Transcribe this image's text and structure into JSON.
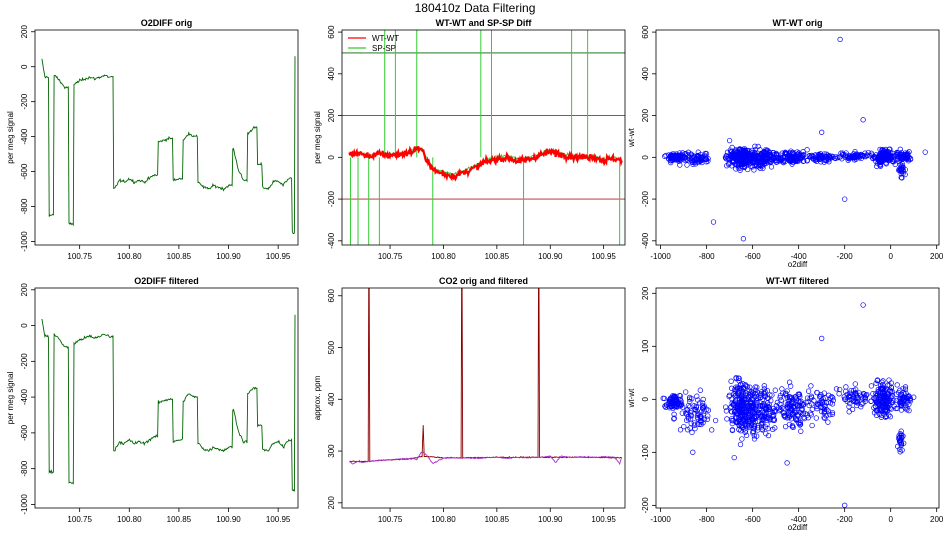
{
  "figure_title": "180410z   Data Filtering",
  "chart_data": [
    {
      "id": "p1",
      "type": "line",
      "title": "O2DIFF orig",
      "xlabel": "",
      "ylabel": "per meg signal",
      "xlim": [
        100.705,
        100.97
      ],
      "ylim": [
        -1020,
        210
      ],
      "xticks": [
        100.75,
        100.8,
        100.85,
        100.9,
        100.95
      ],
      "xtick_labels": [
        "100.75",
        "100.80",
        "100.85",
        "100.90",
        "100.95"
      ],
      "yticks": [
        -1000,
        -800,
        -600,
        -400,
        -200,
        0,
        200
      ],
      "ytick_labels": [
        "-1000",
        "-800",
        "-600",
        "-400",
        "-200",
        "0",
        "200"
      ],
      "series": [
        {
          "color": "#006400",
          "x": [
            100.712,
            100.715,
            100.72,
            100.725,
            100.73,
            100.735,
            100.74,
            100.745,
            100.75,
            100.755,
            100.76,
            100.765,
            100.77,
            100.775,
            100.78,
            100.785,
            100.79,
            100.795,
            100.8,
            100.805,
            100.81,
            100.815,
            100.82,
            100.825,
            100.83,
            100.835,
            100.84,
            100.845,
            100.85,
            100.855,
            100.86,
            100.865,
            100.87,
            100.875,
            100.88,
            100.885,
            100.89,
            100.895,
            100.9,
            100.905,
            100.91,
            100.915,
            100.92,
            100.925,
            100.93,
            100.935,
            100.94,
            100.945,
            100.95,
            100.955,
            100.96,
            100.965,
            100.967
          ],
          "y": [
            40,
            -60,
            -850,
            -50,
            -80,
            -120,
            -900,
            -100,
            -80,
            -70,
            -60,
            -70,
            -60,
            -50,
            -60,
            -700,
            -650,
            -660,
            -640,
            -660,
            -650,
            -660,
            -640,
            -620,
            -430,
            -420,
            -410,
            -650,
            -640,
            -420,
            -380,
            -400,
            -660,
            -690,
            -700,
            -680,
            -690,
            -700,
            -680,
            -470,
            -590,
            -650,
            -380,
            -350,
            -560,
            -690,
            -700,
            -660,
            -650,
            -680,
            -640,
            -950,
            60
          ]
        }
      ]
    },
    {
      "id": "p2",
      "type": "line",
      "title": "WT-WT and SP-SP Diff",
      "xlabel": "",
      "ylabel": "per meg signal",
      "xlim": [
        100.705,
        100.97
      ],
      "ylim": [
        -420,
        610
      ],
      "xticks": [
        100.75,
        100.8,
        100.85,
        100.9,
        100.95
      ],
      "xtick_labels": [
        "100.75",
        "100.80",
        "100.85",
        "100.90",
        "100.95"
      ],
      "yticks": [
        -400,
        -200,
        0,
        200,
        400,
        600
      ],
      "ytick_labels": [
        "-400",
        "-200",
        "0",
        "200",
        "400",
        "600"
      ],
      "hlines": [
        {
          "y": 500,
          "color": "#006400"
        },
        {
          "y": 200,
          "color": "#b22222"
        },
        {
          "y": -200,
          "color": "#b22222"
        }
      ],
      "legend": {
        "position": "top-left",
        "entries": [
          {
            "name": "WT-WT",
            "color": "#ff0000"
          },
          {
            "name": "SP-SP",
            "color": "#33cc33"
          }
        ]
      },
      "series": [
        {
          "name": "SP-SP",
          "color": "#33cc33",
          "x": [
            100.712,
            100.72,
            100.73,
            100.74,
            100.75,
            100.76,
            100.77,
            100.775,
            100.78,
            100.79,
            100.8,
            100.81,
            100.82,
            100.83,
            100.84,
            100.85,
            100.86,
            100.87,
            100.88,
            100.89,
            100.9,
            100.91,
            100.92,
            100.93,
            100.94,
            100.95,
            100.96,
            100.967
          ],
          "y": [
            20,
            25,
            10,
            20,
            15,
            20,
            30,
            50,
            40,
            -50,
            -70,
            -80,
            -60,
            -40,
            -10,
            0,
            10,
            -10,
            0,
            20,
            30,
            20,
            10,
            5,
            10,
            -10,
            0,
            -10
          ],
          "spikes": [
            100.713,
            100.72,
            100.73,
            100.74,
            100.745,
            100.755,
            100.775,
            100.79,
            100.835,
            100.845,
            100.875,
            100.92,
            100.935,
            100.965
          ]
        },
        {
          "name": "WT-WT",
          "color": "#ff0000",
          "x": [
            100.712,
            100.72,
            100.73,
            100.74,
            100.75,
            100.76,
            100.77,
            100.775,
            100.78,
            100.79,
            100.8,
            100.81,
            100.82,
            100.83,
            100.84,
            100.85,
            100.86,
            100.87,
            100.88,
            100.89,
            100.9,
            100.91,
            100.92,
            100.93,
            100.94,
            100.95,
            100.96,
            100.967
          ],
          "y": [
            15,
            20,
            5,
            15,
            10,
            15,
            25,
            45,
            30,
            -60,
            -80,
            -90,
            -70,
            -50,
            -20,
            -10,
            0,
            -20,
            -10,
            10,
            25,
            15,
            5,
            0,
            5,
            -15,
            -5,
            -15
          ]
        }
      ]
    },
    {
      "id": "p3",
      "type": "scatter",
      "title": "WT-WT orig",
      "xlabel": "o2diff",
      "ylabel": "wt-wt",
      "xlim": [
        -1020,
        210
      ],
      "ylim": [
        -420,
        610
      ],
      "xticks": [
        -1000,
        -800,
        -600,
        -400,
        -200,
        0,
        200
      ],
      "xtick_labels": [
        "-1000",
        "-800",
        "-600",
        "-400",
        "-200",
        "0",
        "200"
      ],
      "yticks": [
        -400,
        -200,
        0,
        200,
        400,
        600
      ],
      "ytick_labels": [
        "-400",
        "-200",
        "0",
        "200",
        "400",
        "600"
      ],
      "series": [
        {
          "color": "#0000ff",
          "clusters": [
            {
              "cx": -940,
              "cy": 0,
              "sx": 25,
              "sy": 15,
              "n": 70
            },
            {
              "cx": -850,
              "cy": -5,
              "sx": 50,
              "sy": 20,
              "n": 80
            },
            {
              "cx": -650,
              "cy": 0,
              "sx": 40,
              "sy": 35,
              "n": 220
            },
            {
              "cx": -560,
              "cy": -5,
              "sx": 50,
              "sy": 30,
              "n": 150
            },
            {
              "cx": -430,
              "cy": 0,
              "sx": 50,
              "sy": 20,
              "n": 120
            },
            {
              "cx": -300,
              "cy": 0,
              "sx": 40,
              "sy": 15,
              "n": 60
            },
            {
              "cx": -150,
              "cy": 5,
              "sx": 50,
              "sy": 12,
              "n": 60
            },
            {
              "cx": -30,
              "cy": 5,
              "sx": 30,
              "sy": 25,
              "n": 150
            },
            {
              "cx": 45,
              "cy": -60,
              "sx": 10,
              "sy": 20,
              "n": 25
            },
            {
              "cx": 55,
              "cy": 5,
              "sx": 30,
              "sy": 15,
              "n": 60
            }
          ],
          "outliers": [
            [
              -220,
              565
            ],
            [
              -640,
              -390
            ],
            [
              -770,
              -310
            ],
            [
              -200,
              -200
            ],
            [
              -120,
              180
            ],
            [
              -300,
              120
            ],
            [
              -700,
              80
            ],
            [
              150,
              25
            ]
          ]
        }
      ]
    },
    {
      "id": "p4",
      "type": "line",
      "title": "O2DIFF filtered",
      "xlabel": "",
      "ylabel": "per meg signal",
      "xlim": [
        100.705,
        100.97
      ],
      "ylim": [
        -1020,
        210
      ],
      "xticks": [
        100.75,
        100.8,
        100.85,
        100.9,
        100.95
      ],
      "xtick_labels": [
        "100.75",
        "100.80",
        "100.85",
        "100.90",
        "100.95"
      ],
      "yticks": [
        -1000,
        -800,
        -600,
        -400,
        -200,
        0,
        200
      ],
      "ytick_labels": [
        "-1000",
        "-800",
        "-600",
        "-400",
        "-200",
        "0",
        "200"
      ],
      "series": [
        {
          "color": "#006400",
          "x": [
            100.712,
            100.715,
            100.72,
            100.725,
            100.73,
            100.735,
            100.74,
            100.745,
            100.75,
            100.755,
            100.76,
            100.765,
            100.77,
            100.775,
            100.78,
            100.785,
            100.79,
            100.795,
            100.8,
            100.805,
            100.81,
            100.815,
            100.82,
            100.825,
            100.83,
            100.835,
            100.84,
            100.845,
            100.85,
            100.855,
            100.86,
            100.865,
            100.87,
            100.875,
            100.88,
            100.885,
            100.89,
            100.895,
            100.9,
            100.905,
            100.91,
            100.915,
            100.92,
            100.925,
            100.93,
            100.935,
            100.94,
            100.945,
            100.95,
            100.955,
            100.96,
            100.965,
            100.967
          ],
          "y": [
            40,
            -60,
            -820,
            -50,
            -80,
            -120,
            -880,
            -100,
            -80,
            -70,
            -60,
            -70,
            -60,
            -50,
            -60,
            -700,
            -650,
            -660,
            -640,
            -660,
            -650,
            -660,
            -640,
            -620,
            -430,
            -420,
            -410,
            -650,
            -640,
            -420,
            -380,
            -400,
            -660,
            -690,
            -700,
            -680,
            -690,
            -700,
            -680,
            -470,
            -590,
            -650,
            -380,
            -350,
            -560,
            -690,
            -700,
            -660,
            -650,
            -680,
            -640,
            -920,
            60
          ]
        }
      ]
    },
    {
      "id": "p5",
      "type": "line",
      "title": "CO2 orig and filtered",
      "xlabel": "",
      "ylabel": "approx. ppm",
      "xlim": [
        100.705,
        100.97
      ],
      "ylim": [
        190,
        615
      ],
      "xticks": [
        100.75,
        100.8,
        100.85,
        100.9,
        100.95
      ],
      "xtick_labels": [
        "100.75",
        "100.80",
        "100.85",
        "100.90",
        "100.95"
      ],
      "yticks": [
        200,
        300,
        400,
        500,
        600
      ],
      "ytick_labels": [
        "200",
        "300",
        "400",
        "500",
        "600"
      ],
      "series": [
        {
          "color": "#8b0000",
          "x": [
            100.712,
            100.72,
            100.729,
            100.73,
            100.731,
            100.74,
            100.77,
            100.78,
            100.781,
            100.782,
            100.8,
            100.816,
            100.817,
            100.818,
            100.85,
            100.888,
            100.889,
            100.89,
            100.93,
            100.967
          ],
          "y": [
            280,
            280,
            280,
            615,
            280,
            282,
            285,
            290,
            350,
            290,
            287,
            287,
            615,
            287,
            288,
            288,
            615,
            288,
            288,
            287
          ]
        },
        {
          "color": "#aa33cc",
          "x": [
            100.712,
            100.715,
            100.72,
            100.725,
            100.73,
            100.74,
            100.75,
            100.76,
            100.77,
            100.775,
            100.78,
            100.785,
            100.79,
            100.8,
            100.81,
            100.82,
            100.83,
            100.84,
            100.85,
            100.86,
            100.87,
            100.88,
            100.89,
            100.9,
            100.905,
            100.91,
            100.92,
            100.93,
            100.94,
            100.95,
            100.96,
            100.965,
            100.967
          ],
          "y": [
            280,
            275,
            280,
            278,
            280,
            282,
            283,
            285,
            286,
            284,
            300,
            290,
            276,
            286,
            287,
            287,
            286,
            287,
            288,
            286,
            288,
            287,
            288,
            290,
            278,
            290,
            288,
            289,
            288,
            289,
            288,
            276,
            288
          ]
        }
      ]
    },
    {
      "id": "p6",
      "type": "scatter",
      "title": "WT-WT filtered",
      "xlabel": "o2diff",
      "ylabel": "wt-wt",
      "xlim": [
        -1020,
        210
      ],
      "ylim": [
        -205,
        210
      ],
      "xticks": [
        -1000,
        -800,
        -600,
        -400,
        -200,
        0,
        200
      ],
      "xtick_labels": [
        "-1000",
        "-800",
        "-600",
        "-400",
        "-200",
        "0",
        "200"
      ],
      "yticks": [
        -200,
        -100,
        0,
        100,
        200
      ],
      "ytick_labels": [
        "-200",
        "-100",
        "0",
        "100",
        "200"
      ],
      "series": [
        {
          "color": "#0000ff",
          "clusters": [
            {
              "cx": -940,
              "cy": -5,
              "sx": 25,
              "sy": 12,
              "n": 70
            },
            {
              "cx": -850,
              "cy": -20,
              "sx": 50,
              "sy": 25,
              "n": 80
            },
            {
              "cx": -650,
              "cy": -15,
              "sx": 40,
              "sy": 35,
              "n": 220
            },
            {
              "cx": -560,
              "cy": -20,
              "sx": 50,
              "sy": 30,
              "n": 150
            },
            {
              "cx": -430,
              "cy": -15,
              "sx": 50,
              "sy": 25,
              "n": 120
            },
            {
              "cx": -300,
              "cy": -10,
              "sx": 40,
              "sy": 20,
              "n": 60
            },
            {
              "cx": -150,
              "cy": 5,
              "sx": 50,
              "sy": 15,
              "n": 60
            },
            {
              "cx": -30,
              "cy": 0,
              "sx": 30,
              "sy": 25,
              "n": 150
            },
            {
              "cx": 45,
              "cy": -75,
              "sx": 10,
              "sy": 18,
              "n": 25
            },
            {
              "cx": 55,
              "cy": 0,
              "sx": 30,
              "sy": 15,
              "n": 60
            }
          ],
          "outliers": [
            [
              -120,
              178
            ],
            [
              -300,
              115
            ],
            [
              -200,
              -200
            ],
            [
              -680,
              -110
            ],
            [
              -450,
              -120
            ],
            [
              -860,
              -100
            ]
          ]
        }
      ]
    }
  ]
}
